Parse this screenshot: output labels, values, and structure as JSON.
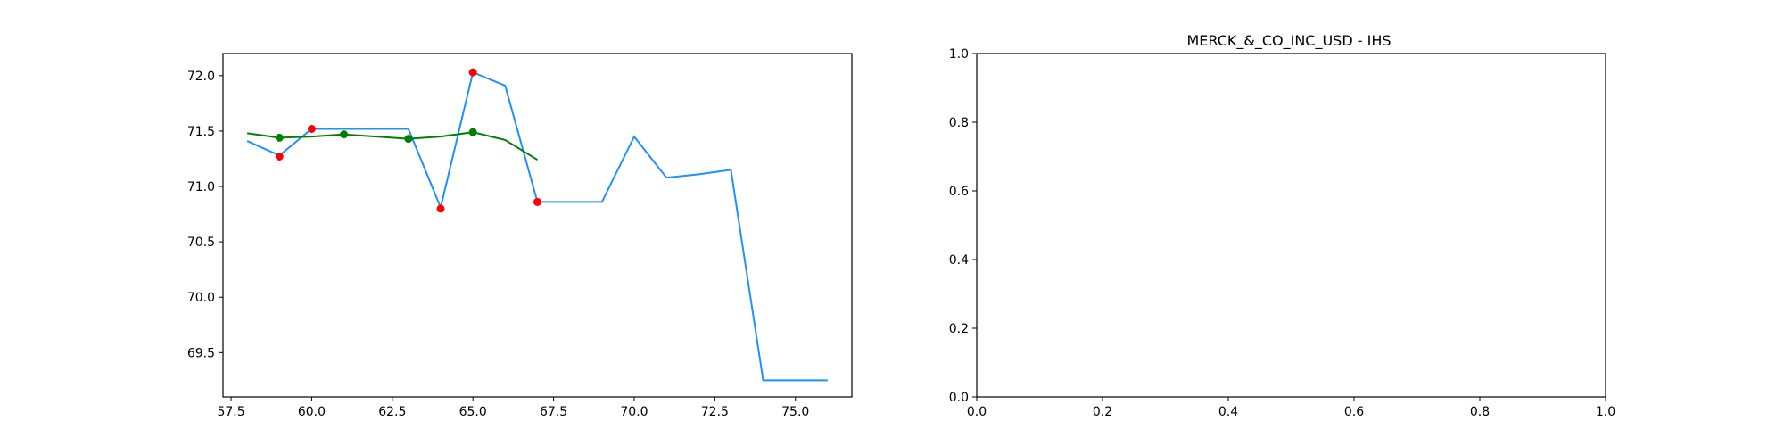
{
  "chart_data": [
    {
      "type": "line",
      "title": "",
      "xlabel": "",
      "ylabel": "",
      "xlim": [
        57.25,
        76.75
      ],
      "ylim": [
        69.1,
        72.2
      ],
      "x_ticks": [
        57.5,
        60.0,
        62.5,
        65.0,
        67.5,
        70.0,
        72.5,
        75.0
      ],
      "x_tick_labels": [
        "57.5",
        "60.0",
        "62.5",
        "65.0",
        "67.5",
        "70.0",
        "72.5",
        "75.0"
      ],
      "y_ticks": [
        69.5,
        70.0,
        70.5,
        71.0,
        71.5,
        72.0
      ],
      "y_tick_labels": [
        "69.5",
        "70.0",
        "70.5",
        "71.0",
        "71.5",
        "72.0"
      ],
      "grid": false,
      "series": [
        {
          "kind": "line",
          "color": "#1e90ff",
          "x": [
            58,
            59,
            60,
            61,
            62,
            63,
            64,
            65,
            66,
            67,
            68,
            69,
            70,
            71,
            72,
            73,
            74,
            75,
            76
          ],
          "y": [
            71.41,
            71.28,
            71.52,
            71.52,
            71.52,
            71.52,
            70.81,
            72.03,
            71.91,
            70.86,
            70.86,
            70.86,
            71.45,
            71.08,
            71.11,
            71.15,
            69.25,
            69.25,
            69.25
          ]
        },
        {
          "kind": "line",
          "color": "#008000",
          "x": [
            58,
            59,
            60,
            61,
            62,
            63,
            64,
            65,
            66,
            67
          ],
          "y": [
            71.48,
            71.44,
            71.45,
            71.47,
            71.45,
            71.43,
            71.45,
            71.49,
            71.42,
            71.24
          ]
        },
        {
          "kind": "scatter",
          "color": "#ff0000",
          "x": [
            59,
            60,
            64,
            65,
            67
          ],
          "y": [
            71.27,
            71.52,
            70.8,
            72.03,
            70.86
          ]
        },
        {
          "kind": "scatter",
          "color": "#008000",
          "x": [
            59,
            61,
            63,
            65
          ],
          "y": [
            71.44,
            71.47,
            71.43,
            71.49
          ]
        }
      ]
    },
    {
      "type": "line",
      "title": "MERCK_&_CO_INC_USD - IHS",
      "xlabel": "",
      "ylabel": "",
      "xlim": [
        0.0,
        1.0
      ],
      "ylim": [
        0.0,
        1.0
      ],
      "x_ticks": [
        0.0,
        0.2,
        0.4,
        0.6,
        0.8,
        1.0
      ],
      "x_tick_labels": [
        "0.0",
        "0.2",
        "0.4",
        "0.6",
        "0.8",
        "1.0"
      ],
      "y_ticks": [
        0.0,
        0.2,
        0.4,
        0.6,
        0.8,
        1.0
      ],
      "y_tick_labels": [
        "0.0",
        "0.2",
        "0.4",
        "0.6",
        "0.8",
        "1.0"
      ],
      "grid": false,
      "series": []
    }
  ]
}
